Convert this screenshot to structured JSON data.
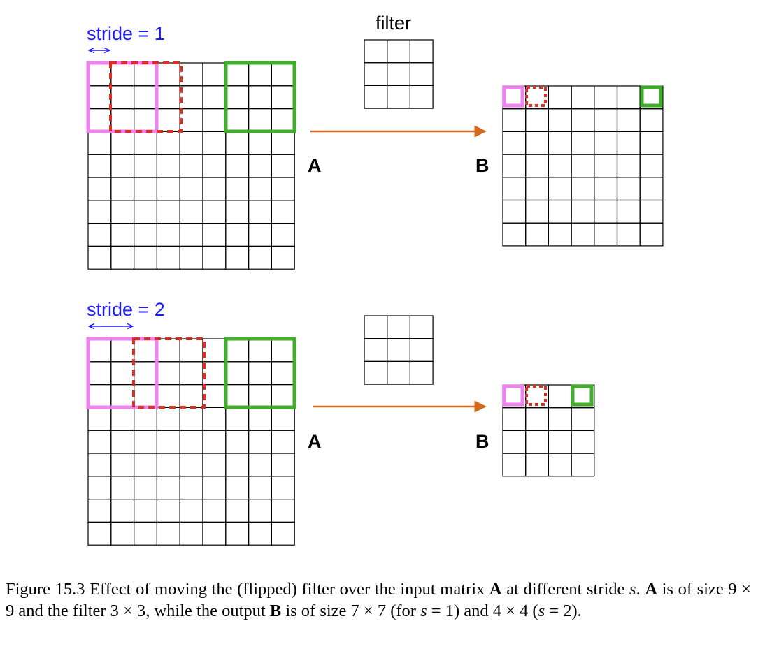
{
  "labels": {
    "stride1": "stride = 1",
    "stride2": "stride = 2",
    "filter": "filter",
    "input_name": "A",
    "output_name": "B"
  },
  "caption": {
    "figure_label": "Figure 15.3",
    "segments": [
      {
        "t": " Effect of moving the (flipped) filter over the input matrix ",
        "s": "n"
      },
      {
        "t": "A",
        "s": "b"
      },
      {
        "t": " at different stride ",
        "s": "n"
      },
      {
        "t": "s",
        "s": "i"
      },
      {
        "t": ". ",
        "s": "n"
      },
      {
        "t": "A",
        "s": "b"
      },
      {
        "t": " is of size 9 × 9 and the filter 3 × 3, while the output ",
        "s": "n"
      },
      {
        "t": "B",
        "s": "b"
      },
      {
        "t": " is of size 7 × 7 (for ",
        "s": "n"
      },
      {
        "t": "s",
        "s": "i"
      },
      {
        "t": " = 1) and 4 × 4 (",
        "s": "n"
      },
      {
        "t": "s",
        "s": "i"
      },
      {
        "t": " = 2).",
        "s": "n"
      }
    ]
  },
  "panels": [
    {
      "stride": 1,
      "input_size": 9,
      "filter_size": 3,
      "output_size": 7
    },
    {
      "stride": 2,
      "input_size": 9,
      "filter_size": 3,
      "output_size": 4
    }
  ],
  "colors": {
    "first_window": "#ee82ee",
    "second_window": "#d93025",
    "last_window": "#3fae2a",
    "arrow": "#d2691e",
    "stride_label": "#1a1aff",
    "grid": "#000000"
  }
}
